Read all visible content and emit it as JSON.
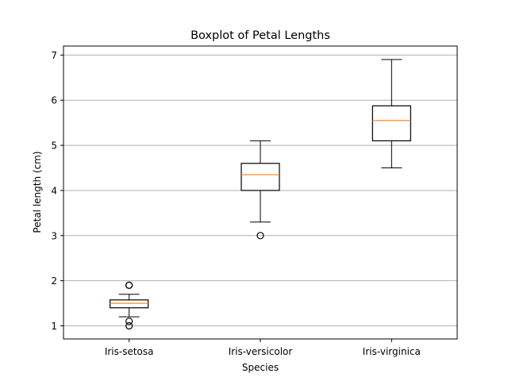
{
  "chart_data": {
    "type": "box",
    "title": "Boxplot of Petal Lengths",
    "xlabel": "Species",
    "ylabel": "Petal length (cm)",
    "ylim": [
      0.71,
      7.2
    ],
    "yticks": [
      "1",
      "2",
      "3",
      "4",
      "5",
      "6",
      "7"
    ],
    "grid": "y-major",
    "categories": [
      "Iris-setosa",
      "Iris-versicolor",
      "Iris-virginica"
    ],
    "boxes": [
      {
        "whisker_low": 1.2,
        "q1": 1.4,
        "median": 1.5,
        "q3": 1.575,
        "whisker_high": 1.7,
        "outliers": [
          1.9,
          1.9,
          1.0,
          1.1
        ]
      },
      {
        "whisker_low": 3.3,
        "q1": 4.0,
        "median": 4.35,
        "q3": 4.6,
        "whisker_high": 5.1,
        "outliers": [
          3.0
        ]
      },
      {
        "whisker_low": 4.5,
        "q1": 5.1,
        "median": 5.55,
        "q3": 5.875,
        "whisker_high": 6.9,
        "outliers": []
      }
    ],
    "colors": {
      "box": "#000000",
      "median": "#ff7f0e",
      "grid": "#b0b0b0"
    }
  }
}
